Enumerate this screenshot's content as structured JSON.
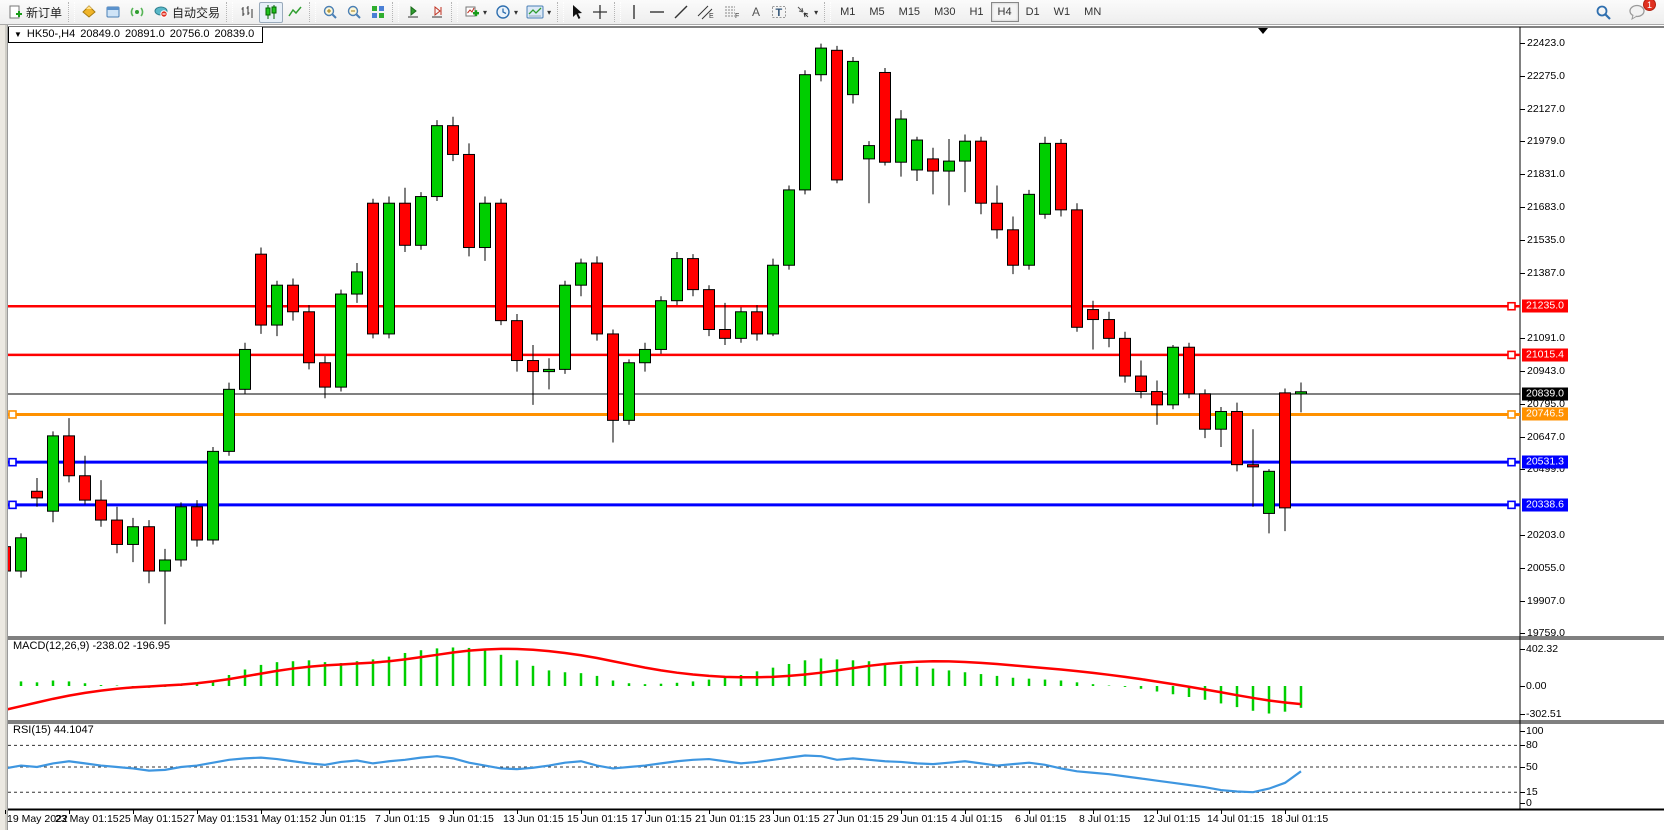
{
  "toolbar": {
    "new_order_label": "新订单",
    "autotrade_label": "自动交易",
    "timeframes": [
      "M1",
      "M5",
      "M15",
      "M30",
      "H1",
      "H4",
      "D1",
      "W1",
      "MN"
    ],
    "active_timeframe": "H4",
    "chat_badge": "1"
  },
  "chart_title": {
    "symbol_period": "HK50-,H4",
    "open": "20849.0",
    "high": "20891.0",
    "low": "20756.0",
    "close": "20839.0"
  },
  "panes": {
    "macd_label": "MACD(12,26,9) -238.02 -196.95",
    "rsi_label": "RSI(15) 44.1047"
  },
  "colors": {
    "bull": "#00CE00",
    "bear": "#FF0000",
    "wick": "#000000",
    "level_red": "#FF0000",
    "level_orange": "#FF9100",
    "level_blue": "#0000FF",
    "current_price": "#000000",
    "macd_hist": "#00CE00",
    "macd_signal": "#FF0000",
    "rsi_line": "#3E96E0"
  },
  "chart_data": [
    {
      "type": "candlestick",
      "title": "HK50- H4",
      "ylim": [
        19700,
        22480
      ],
      "y_ticks": [
        "22423.0",
        "22275.0",
        "22127.0",
        "21979.0",
        "21831.0",
        "21683.0",
        "21535.0",
        "21387.0",
        "21091.0",
        "20943.0",
        "20795.0",
        "20647.0",
        "20499.0",
        "20203.0",
        "20055.0",
        "19907.0",
        "19759.0"
      ],
      "levels": [
        {
          "price": 21235.0,
          "label": "21235.0",
          "color": "#FF0000",
          "left_handle": false
        },
        {
          "price": 21015.4,
          "label": "21015.4",
          "color": "#FF0000",
          "left_handle": false
        },
        {
          "price": 20839.0,
          "label": "20839.0",
          "color": "#000000",
          "left_handle": false,
          "current": true
        },
        {
          "price": 20746.5,
          "label": "20746.5",
          "color": "#FF9100",
          "left_handle": true
        },
        {
          "price": 20531.3,
          "label": "20531.3",
          "color": "#0000FF",
          "left_handle": true
        },
        {
          "price": 20338.6,
          "label": "20338.6",
          "color": "#0000FF",
          "left_handle": true
        }
      ],
      "candles_ohlc": [
        [
          20150,
          20170,
          19990,
          20040
        ],
        [
          20040,
          20210,
          20010,
          20190
        ],
        [
          20400,
          20460,
          20330,
          20370
        ],
        [
          20310,
          20670,
          20260,
          20650
        ],
        [
          20650,
          20730,
          20440,
          20470
        ],
        [
          20470,
          20560,
          20340,
          20360
        ],
        [
          20360,
          20450,
          20240,
          20270
        ],
        [
          20270,
          20330,
          20120,
          20160
        ],
        [
          20160,
          20280,
          20080,
          20240
        ],
        [
          20240,
          20270,
          19985,
          20040
        ],
        [
          20040,
          20140,
          19800,
          20090
        ],
        [
          20090,
          20350,
          20060,
          20330
        ],
        [
          20330,
          20360,
          20150,
          20180
        ],
        [
          20180,
          20600,
          20160,
          20580
        ],
        [
          20580,
          20890,
          20560,
          20860
        ],
        [
          20860,
          21070,
          20840,
          21040
        ],
        [
          21470,
          21500,
          21110,
          21150
        ],
        [
          21150,
          21350,
          21100,
          21330
        ],
        [
          21330,
          21360,
          21170,
          21210
        ],
        [
          21210,
          21240,
          20950,
          20980
        ],
        [
          20980,
          21010,
          20820,
          20870
        ],
        [
          20870,
          21310,
          20850,
          21290
        ],
        [
          21290,
          21430,
          21250,
          21390
        ],
        [
          21700,
          21720,
          21090,
          21110
        ],
        [
          21110,
          21730,
          21090,
          21700
        ],
        [
          21700,
          21770,
          21480,
          21510
        ],
        [
          21510,
          21750,
          21490,
          21730
        ],
        [
          21730,
          22075,
          21710,
          22050
        ],
        [
          22050,
          22090,
          21890,
          21920
        ],
        [
          21920,
          21970,
          21460,
          21500
        ],
        [
          21500,
          21730,
          21440,
          21700
        ],
        [
          21700,
          21720,
          21150,
          21170
        ],
        [
          21170,
          21200,
          20940,
          20990
        ],
        [
          20990,
          21060,
          20790,
          20940
        ],
        [
          20940,
          21000,
          20860,
          20950
        ],
        [
          20950,
          21350,
          20930,
          21330
        ],
        [
          21330,
          21450,
          21280,
          21430
        ],
        [
          21430,
          21460,
          21080,
          21110
        ],
        [
          21110,
          21130,
          20620,
          20720
        ],
        [
          20720,
          20995,
          20700,
          20980
        ],
        [
          20980,
          21070,
          20940,
          21040
        ],
        [
          21040,
          21280,
          21020,
          21260
        ],
        [
          21260,
          21480,
          21240,
          21450
        ],
        [
          21450,
          21470,
          21280,
          21310
        ],
        [
          21310,
          21330,
          21100,
          21130
        ],
        [
          21130,
          21250,
          21060,
          21090
        ],
        [
          21090,
          21230,
          21070,
          21210
        ],
        [
          21210,
          21240,
          21080,
          21110
        ],
        [
          21110,
          21450,
          21100,
          21420
        ],
        [
          21420,
          21780,
          21400,
          21760
        ],
        [
          21760,
          22300,
          21740,
          22280
        ],
        [
          22280,
          22420,
          22250,
          22400
        ],
        [
          22390,
          22410,
          21790,
          21805
        ],
        [
          22190,
          22360,
          22150,
          22340
        ],
        [
          21900,
          21980,
          21700,
          21960
        ],
        [
          22290,
          22310,
          21870,
          21885
        ],
        [
          21885,
          22120,
          21820,
          22080
        ],
        [
          21850,
          22000,
          21800,
          21985
        ],
        [
          21900,
          21950,
          21740,
          21845
        ],
        [
          21845,
          21990,
          21690,
          21890
        ],
        [
          21890,
          22010,
          21750,
          21980
        ],
        [
          21980,
          22000,
          21650,
          21700
        ],
        [
          21700,
          21780,
          21540,
          21580
        ],
        [
          21580,
          21640,
          21380,
          21420
        ],
        [
          21420,
          21760,
          21400,
          21740
        ],
        [
          21650,
          22000,
          21630,
          21970
        ],
        [
          21970,
          21990,
          21640,
          21670
        ],
        [
          21670,
          21700,
          21120,
          21140
        ],
        [
          21220,
          21260,
          21040,
          21175
        ],
        [
          21175,
          21210,
          21050,
          21090
        ],
        [
          21090,
          21120,
          20890,
          20920
        ],
        [
          20920,
          20990,
          20820,
          20850
        ],
        [
          20850,
          20900,
          20700,
          20790
        ],
        [
          20790,
          21060,
          20770,
          21050
        ],
        [
          21050,
          21070,
          20820,
          20840
        ],
        [
          20840,
          20860,
          20640,
          20680
        ],
        [
          20680,
          20780,
          20600,
          20760
        ],
        [
          20760,
          20800,
          20490,
          20520
        ],
        [
          20520,
          20680,
          20330,
          20510
        ],
        [
          20300,
          20500,
          20210,
          20490
        ],
        [
          20844,
          20864,
          20220,
          20325
        ],
        [
          20849,
          20891,
          20756,
          20839
        ]
      ],
      "last_candle_color": "bull"
    },
    {
      "type": "bar",
      "title": "MACD(12,26,9)",
      "values_label": [
        "-238.02",
        "-196.95"
      ],
      "y_ticks": [
        "402.32",
        "0.00",
        "-302.51"
      ],
      "y_tick_values": [
        402.32,
        0.0,
        -302.51
      ],
      "histogram": [
        30,
        50,
        40,
        60,
        50,
        30,
        10,
        5,
        -10,
        -20,
        -10,
        10,
        20,
        60,
        120,
        180,
        230,
        260,
        270,
        280,
        260,
        250,
        270,
        290,
        320,
        360,
        390,
        410,
        420,
        415,
        390,
        340,
        280,
        220,
        170,
        150,
        140,
        110,
        60,
        30,
        20,
        25,
        35,
        50,
        70,
        90,
        120,
        160,
        200,
        240,
        280,
        300,
        290,
        280,
        270,
        250,
        230,
        210,
        190,
        170,
        150,
        130,
        110,
        90,
        80,
        70,
        60,
        40,
        20,
        5,
        -10,
        -30,
        -60,
        -90,
        -120,
        -150,
        -190,
        -230,
        -270,
        -300,
        -280,
        -238
      ],
      "signal": [
        -260,
        -220,
        -180,
        -140,
        -105,
        -75,
        -50,
        -30,
        -15,
        -5,
        5,
        15,
        30,
        50,
        75,
        105,
        135,
        165,
        190,
        210,
        225,
        235,
        245,
        255,
        270,
        290,
        315,
        340,
        365,
        385,
        398,
        405,
        403,
        395,
        380,
        360,
        335,
        305,
        270,
        235,
        200,
        170,
        145,
        125,
        110,
        100,
        95,
        95,
        100,
        110,
        125,
        145,
        170,
        195,
        220,
        240,
        255,
        265,
        270,
        268,
        262,
        252,
        240,
        225,
        210,
        195,
        180,
        162,
        143,
        122,
        100,
        75,
        48,
        20,
        -8,
        -38,
        -68,
        -100,
        -130,
        -158,
        -180,
        -197
      ]
    },
    {
      "type": "line",
      "title": "RSI(15)",
      "value_label": "44.1047",
      "y_ticks": [
        "100",
        "80",
        "50",
        "15",
        "0"
      ],
      "y_tick_values": [
        100,
        80,
        50,
        15,
        0
      ],
      "dashed_levels": [
        80,
        50,
        15
      ],
      "values": [
        48,
        52,
        50,
        55,
        58,
        55,
        52,
        50,
        48,
        45,
        46,
        50,
        52,
        56,
        60,
        62,
        63,
        61,
        58,
        55,
        53,
        57,
        59,
        55,
        58,
        60,
        63,
        65,
        62,
        56,
        52,
        48,
        47,
        49,
        52,
        56,
        58,
        52,
        48,
        50,
        52,
        55,
        58,
        60,
        61,
        58,
        55,
        57,
        60,
        63,
        66,
        65,
        60,
        62,
        60,
        58,
        57,
        55,
        54,
        56,
        58,
        55,
        52,
        54,
        56,
        53,
        48,
        44,
        42,
        40,
        37,
        34,
        31,
        28,
        25,
        22,
        18,
        16,
        15,
        20,
        28,
        44
      ]
    }
  ],
  "time_axis": {
    "labels": [
      "19 May 2022",
      "23 May 01:15",
      "25 May 01:15",
      "27 May 01:15",
      "31 May 01:15",
      "2 Jun 01:15",
      "7 Jun 01:15",
      "9 Jun 01:15",
      "13 Jun 01:15",
      "15 Jun 01:15",
      "17 Jun 01:15",
      "21 Jun 01:15",
      "23 Jun 01:15",
      "27 Jun 01:15",
      "29 Jun 01:15",
      "4 Jul 01:15",
      "6 Jul 01:15",
      "8 Jul 01:15",
      "12 Jul 01:15",
      "14 Jul 01:15",
      "18 Jul 01:15"
    ]
  }
}
